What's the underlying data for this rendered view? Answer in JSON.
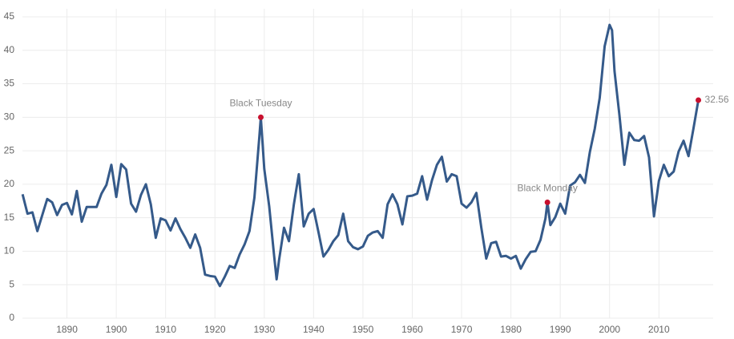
{
  "chart_data": {
    "type": "line",
    "x": [
      1881,
      1882,
      1883,
      1884,
      1885,
      1886,
      1887,
      1888,
      1889,
      1890,
      1891,
      1892,
      1893,
      1894,
      1895,
      1896,
      1897,
      1898,
      1899,
      1900,
      1901,
      1902,
      1903,
      1904,
      1905,
      1906,
      1907,
      1908,
      1909,
      1910,
      1911,
      1912,
      1913,
      1914,
      1915,
      1916,
      1917,
      1918,
      1919,
      1920,
      1921,
      1922,
      1923,
      1924,
      1925,
      1926,
      1927,
      1928,
      1929,
      1929.3,
      1930,
      1931,
      1932,
      1932.5,
      1933,
      1934,
      1935,
      1936,
      1937,
      1938,
      1939,
      1940,
      1941,
      1942,
      1943,
      1944,
      1945,
      1946,
      1947,
      1948,
      1949,
      1950,
      1951,
      1952,
      1953,
      1954,
      1955,
      1956,
      1957,
      1958,
      1959,
      1960,
      1961,
      1962,
      1963,
      1964,
      1965,
      1966,
      1967,
      1968,
      1969,
      1970,
      1971,
      1972,
      1973,
      1974,
      1975,
      1976,
      1977,
      1978,
      1979,
      1980,
      1981,
      1982,
      1983,
      1984,
      1985,
      1986,
      1987,
      1987.4,
      1988,
      1989,
      1990,
      1991,
      1992,
      1993,
      1994,
      1995,
      1996,
      1997,
      1998,
      1999,
      2000,
      2000.5,
      2001,
      2002,
      2003,
      2004,
      2005,
      2006,
      2007,
      2008,
      2009,
      2010,
      2011,
      2012,
      2013,
      2014,
      2015,
      2016,
      2017,
      2018
    ],
    "series": [
      {
        "color": "#355a8a",
        "values": [
          18.5,
          15.6,
          15.8,
          13.0,
          15.4,
          17.8,
          17.3,
          15.4,
          16.9,
          17.2,
          15.5,
          19.0,
          14.4,
          16.6,
          16.6,
          16.6,
          18.6,
          19.9,
          22.9,
          18.1,
          23.0,
          22.2,
          17.1,
          15.9,
          18.4,
          20.0,
          17.0,
          12.0,
          14.9,
          14.6,
          13.1,
          14.9,
          13.3,
          12.0,
          10.5,
          12.5,
          10.5,
          6.5,
          6.3,
          6.2,
          4.8,
          6.2,
          7.8,
          7.5,
          9.5,
          11.0,
          13.0,
          18.0,
          27.1,
          30.0,
          22.3,
          16.7,
          9.3,
          5.8,
          8.7,
          13.5,
          11.5,
          17.0,
          21.5,
          13.7,
          15.6,
          16.3,
          12.8,
          9.2,
          10.2,
          11.5,
          12.4,
          15.6,
          11.5,
          10.6,
          10.3,
          10.7,
          12.3,
          12.8,
          13.0,
          12.0,
          17.0,
          18.5,
          17.0,
          14.0,
          18.2,
          18.3,
          18.6,
          21.2,
          17.7,
          20.6,
          22.9,
          24.1,
          20.4,
          21.5,
          21.2,
          17.1,
          16.5,
          17.3,
          18.7,
          13.5,
          8.9,
          11.2,
          11.4,
          9.2,
          9.3,
          8.9,
          9.3,
          7.4,
          8.8,
          9.9,
          10.0,
          11.7,
          14.9,
          17.3,
          13.9,
          15.1,
          17.1,
          15.6,
          19.8,
          20.3,
          21.4,
          20.2,
          24.8,
          28.3,
          32.9,
          40.6,
          43.8,
          43.0,
          36.9,
          30.3,
          22.9,
          27.7,
          26.6,
          26.5,
          27.2,
          24.0,
          15.2,
          20.5,
          22.9,
          21.2,
          21.9,
          24.9,
          26.5,
          24.2,
          28.3,
          32.56
        ]
      }
    ],
    "xlim": [
      1880,
      2021
    ],
    "ylim": [
      0,
      45
    ],
    "xticks": [
      1890,
      1900,
      1910,
      1920,
      1930,
      1940,
      1950,
      1960,
      1970,
      1980,
      1990,
      2000,
      2010
    ],
    "yticks": [
      0,
      5,
      10,
      15,
      20,
      25,
      30,
      35,
      40,
      45
    ],
    "grid": true,
    "annotations": [
      {
        "label": "Black Tuesday",
        "x": 1929.3,
        "y": 30.0,
        "color": "#c8102e"
      },
      {
        "label": "Black Monday",
        "x": 1987.4,
        "y": 17.3,
        "color": "#c8102e"
      },
      {
        "x": 2018,
        "y": 32.56,
        "color": "#c8102e"
      }
    ]
  }
}
